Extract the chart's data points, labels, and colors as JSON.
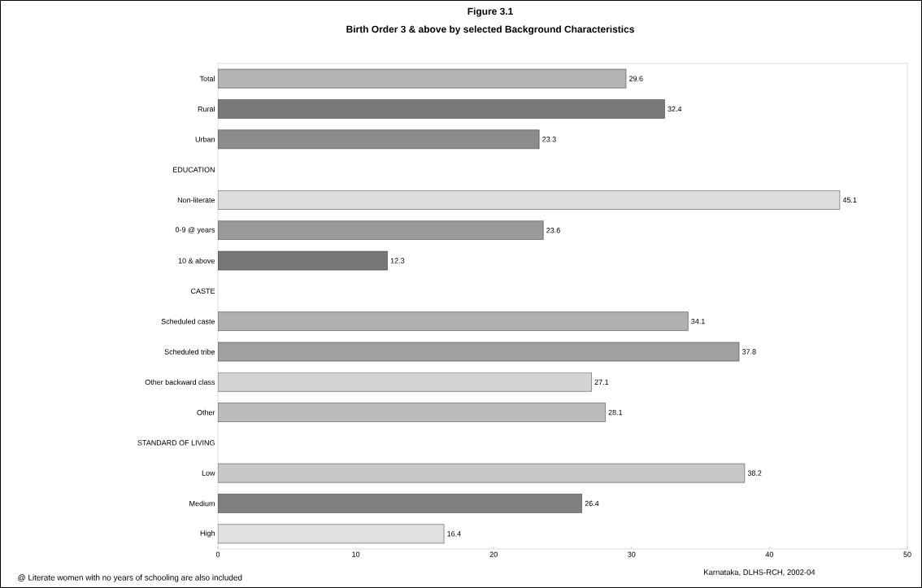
{
  "chart_data": {
    "type": "bar",
    "orientation": "horizontal",
    "title": "Figure 3.1",
    "subtitle": "Birth Order 3 & above by selected Background Characteristics",
    "categories": [
      "Total",
      "Rural",
      "Urban",
      "EDUCATION",
      "Non-literate",
      "0-9 @ years",
      "10 & above",
      "CASTE",
      "Scheduled caste",
      "Scheduled tribe",
      "Other backward class",
      "Other",
      "STANDARD OF LIVING",
      "Low",
      "Medium",
      "High"
    ],
    "values": [
      29.6,
      32.4,
      23.3,
      null,
      45.1,
      23.6,
      12.3,
      null,
      34.1,
      37.8,
      27.1,
      28.1,
      null,
      38.2,
      26.4,
      16.4
    ],
    "colors": [
      "#b4b4b4",
      "#7a7a7a",
      "#8c8c8c",
      null,
      "#dcdcdc",
      "#999999",
      "#777777",
      null,
      "#b0b0b0",
      "#a0a0a0",
      "#d4d4d4",
      "#bcbcbc",
      null,
      "#c8c8c8",
      "#808080",
      "#e0e0e0"
    ],
    "xlim": [
      0,
      50
    ],
    "xticks": [
      0,
      10,
      20,
      30,
      40,
      50
    ],
    "data_labels": true,
    "annotations": [
      "Karnataka, DLHS-RCH, 2002-04",
      "@ Literate women with no years of schooling are also included"
    ]
  }
}
